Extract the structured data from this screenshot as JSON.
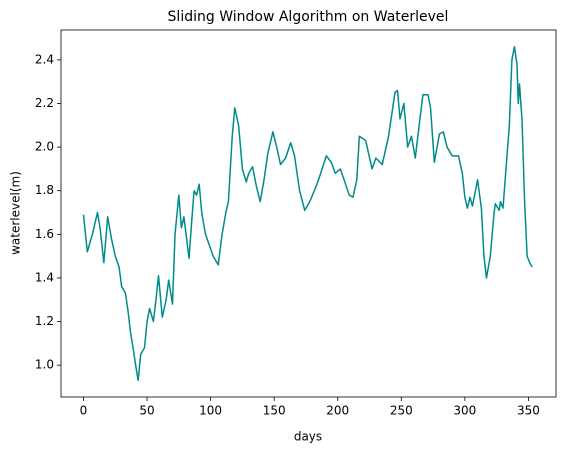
{
  "chart_data": {
    "type": "line",
    "title": "Sliding Window Algorithm on Waterlevel",
    "x_label": "days",
    "y_label": "waterlevel(m)",
    "color": "#008b8b",
    "x": [
      0,
      3,
      7,
      11,
      13,
      16,
      19,
      22,
      25,
      28,
      30,
      33,
      35,
      37,
      39,
      41,
      43,
      45,
      48,
      50,
      52,
      55,
      57,
      59,
      62,
      65,
      67,
      70,
      72,
      75,
      77,
      79,
      83,
      85,
      87,
      89,
      91,
      93,
      96,
      99,
      102,
      106,
      109,
      112,
      114,
      117,
      119,
      122,
      125,
      128,
      130,
      133,
      136,
      139,
      142,
      145,
      149,
      152,
      155,
      159,
      163,
      166,
      170,
      174,
      178,
      183,
      186,
      191,
      195,
      198,
      202,
      205,
      209,
      212,
      215,
      217,
      222,
      227,
      230,
      235,
      240,
      245,
      247,
      249,
      252,
      255,
      258,
      261,
      263,
      267,
      271,
      273,
      276,
      280,
      283,
      286,
      290,
      295,
      298,
      300,
      302,
      304,
      306,
      309,
      310,
      313,
      315,
      317,
      320,
      323,
      324,
      327,
      328,
      330,
      333,
      335,
      337,
      339,
      341,
      342,
      343,
      345,
      347,
      349,
      351,
      353
    ],
    "values": [
      1.69,
      1.52,
      1.6,
      1.7,
      1.63,
      1.47,
      1.68,
      1.58,
      1.5,
      1.45,
      1.36,
      1.33,
      1.25,
      1.15,
      1.08,
      1.0,
      0.93,
      1.05,
      1.08,
      1.2,
      1.26,
      1.2,
      1.3,
      1.41,
      1.22,
      1.3,
      1.39,
      1.28,
      1.6,
      1.78,
      1.63,
      1.68,
      1.49,
      1.65,
      1.8,
      1.78,
      1.83,
      1.7,
      1.6,
      1.55,
      1.5,
      1.46,
      1.6,
      1.7,
      1.75,
      2.05,
      2.18,
      2.1,
      1.9,
      1.84,
      1.88,
      1.91,
      1.82,
      1.75,
      1.85,
      1.97,
      2.07,
      2.0,
      1.92,
      1.95,
      2.02,
      1.96,
      1.8,
      1.71,
      1.75,
      1.82,
      1.87,
      1.96,
      1.93,
      1.88,
      1.9,
      1.85,
      1.78,
      1.77,
      1.85,
      2.05,
      2.03,
      1.9,
      1.95,
      1.92,
      2.05,
      2.25,
      2.26,
      2.13,
      2.2,
      2.0,
      2.05,
      1.95,
      2.05,
      2.24,
      2.24,
      2.18,
      1.93,
      2.06,
      2.07,
      2.0,
      1.96,
      1.96,
      1.88,
      1.77,
      1.72,
      1.77,
      1.73,
      1.82,
      1.85,
      1.72,
      1.5,
      1.4,
      1.5,
      1.7,
      1.74,
      1.71,
      1.75,
      1.72,
      1.95,
      2.1,
      2.4,
      2.46,
      2.38,
      2.2,
      2.29,
      2.12,
      1.75,
      1.5,
      1.47,
      1.45
    ],
    "xlim": [
      -17.7,
      371.7
    ],
    "xticks": [
      0,
      50,
      100,
      150,
      200,
      250,
      300,
      350
    ],
    "ylim": [
      0.854,
      2.537
    ],
    "yticks": [
      {
        "value": 1.0,
        "label": "1.0"
      },
      1.2,
      1.4,
      1.6,
      1.8,
      {
        "value": 2.0,
        "label": "2.0"
      },
      2.2,
      2.4
    ]
  }
}
